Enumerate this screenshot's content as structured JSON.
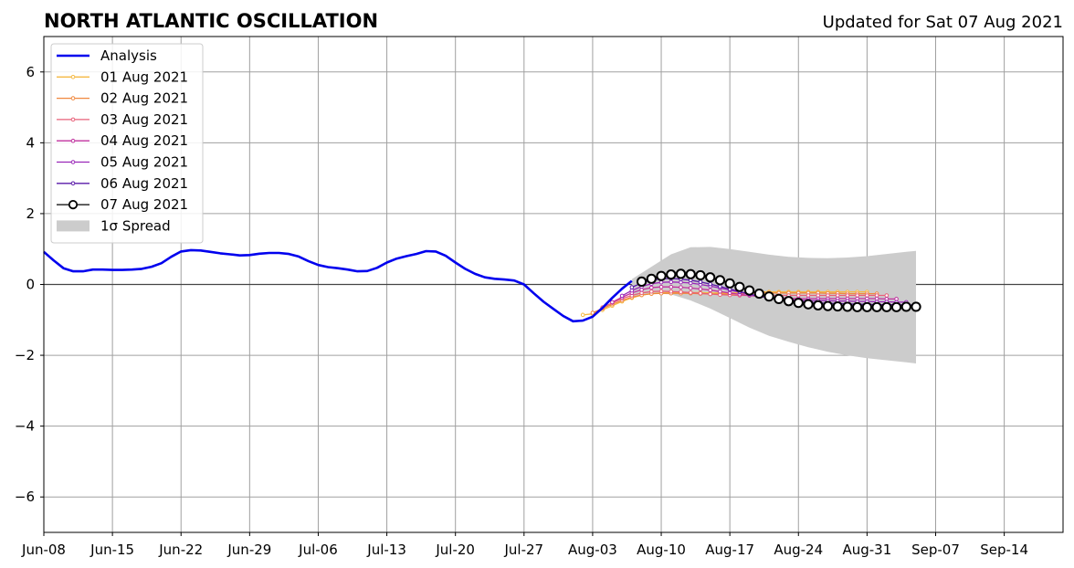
{
  "chart_data": {
    "type": "line",
    "title": "NORTH ATLANTIC OSCILLATION",
    "subtitle": "Updated for Sat 07 Aug 2021",
    "xlim": [
      "2021-06-08",
      "2021-09-20"
    ],
    "ylim": [
      -7,
      7
    ],
    "grid": true,
    "legend_position": "top-left",
    "x_ticks": [
      {
        "date": "2021-06-08",
        "label": "Jun-08"
      },
      {
        "date": "2021-06-15",
        "label": "Jun-15"
      },
      {
        "date": "2021-06-22",
        "label": "Jun-22"
      },
      {
        "date": "2021-06-29",
        "label": "Jun-29"
      },
      {
        "date": "2021-07-06",
        "label": "Jul-06"
      },
      {
        "date": "2021-07-13",
        "label": "Jul-13"
      },
      {
        "date": "2021-07-20",
        "label": "Jul-20"
      },
      {
        "date": "2021-07-27",
        "label": "Jul-27"
      },
      {
        "date": "2021-08-03",
        "label": "Aug-03"
      },
      {
        "date": "2021-08-10",
        "label": "Aug-10"
      },
      {
        "date": "2021-08-17",
        "label": "Aug-17"
      },
      {
        "date": "2021-08-24",
        "label": "Aug-24"
      },
      {
        "date": "2021-08-31",
        "label": "Aug-31"
      },
      {
        "date": "2021-09-07",
        "label": "Sep-07"
      },
      {
        "date": "2021-09-14",
        "label": "Sep-14"
      }
    ],
    "y_ticks": [
      {
        "value": 6,
        "label": "6"
      },
      {
        "value": 4,
        "label": "4"
      },
      {
        "value": 2,
        "label": "2"
      },
      {
        "value": 0,
        "label": "0"
      },
      {
        "value": -2,
        "label": "−2"
      },
      {
        "value": -4,
        "label": "−4"
      },
      {
        "value": -6,
        "label": "−6"
      }
    ],
    "analysis": {
      "name": "Analysis",
      "color": "#0000ee",
      "x": [
        "2021-06-08",
        "2021-06-09",
        "2021-06-10",
        "2021-06-11",
        "2021-06-12",
        "2021-06-13",
        "2021-06-14",
        "2021-06-15",
        "2021-06-16",
        "2021-06-17",
        "2021-06-18",
        "2021-06-19",
        "2021-06-20",
        "2021-06-21",
        "2021-06-22",
        "2021-06-23",
        "2021-06-24",
        "2021-06-25",
        "2021-06-26",
        "2021-06-27",
        "2021-06-28",
        "2021-06-29",
        "2021-06-30",
        "2021-07-01",
        "2021-07-02",
        "2021-07-03",
        "2021-07-04",
        "2021-07-05",
        "2021-07-06",
        "2021-07-07",
        "2021-07-08",
        "2021-07-09",
        "2021-07-10",
        "2021-07-11",
        "2021-07-12",
        "2021-07-13",
        "2021-07-14",
        "2021-07-15",
        "2021-07-16",
        "2021-07-17",
        "2021-07-18",
        "2021-07-19",
        "2021-07-20",
        "2021-07-21",
        "2021-07-22",
        "2021-07-23",
        "2021-07-24",
        "2021-07-25",
        "2021-07-26",
        "2021-07-27",
        "2021-07-28",
        "2021-07-29",
        "2021-07-30",
        "2021-07-31",
        "2021-08-01",
        "2021-08-02",
        "2021-08-03",
        "2021-08-04",
        "2021-08-05",
        "2021-08-06",
        "2021-08-07"
      ],
      "values": [
        0.92,
        0.68,
        0.46,
        0.37,
        0.37,
        0.42,
        0.42,
        0.41,
        0.41,
        0.42,
        0.44,
        0.5,
        0.6,
        0.78,
        0.93,
        0.97,
        0.96,
        0.92,
        0.88,
        0.85,
        0.82,
        0.83,
        0.87,
        0.89,
        0.89,
        0.86,
        0.79,
        0.66,
        0.55,
        0.49,
        0.46,
        0.42,
        0.37,
        0.38,
        0.47,
        0.62,
        0.73,
        0.8,
        0.86,
        0.94,
        0.93,
        0.81,
        0.62,
        0.44,
        0.3,
        0.2,
        0.16,
        0.14,
        0.11,
        0.0,
        -0.25,
        -0.49,
        -0.69,
        -0.89,
        -1.04,
        -1.02,
        -0.91,
        -0.66,
        -0.38,
        -0.12,
        0.1
      ]
    },
    "spread": {
      "name": "1σ Spread",
      "color": "#cccccc",
      "x": [
        "2021-08-07",
        "2021-08-09",
        "2021-08-11",
        "2021-08-13",
        "2021-08-15",
        "2021-08-17",
        "2021-08-19",
        "2021-08-21",
        "2021-08-23",
        "2021-08-25",
        "2021-08-27",
        "2021-08-29",
        "2021-08-31",
        "2021-09-02",
        "2021-09-04",
        "2021-09-05"
      ],
      "upper": [
        0.15,
        0.5,
        0.85,
        1.05,
        1.06,
        1.0,
        0.92,
        0.84,
        0.78,
        0.75,
        0.74,
        0.76,
        0.8,
        0.86,
        0.92,
        0.95
      ],
      "lower": [
        -0.35,
        -0.25,
        -0.28,
        -0.45,
        -0.68,
        -0.95,
        -1.22,
        -1.45,
        -1.62,
        -1.77,
        -1.9,
        -2.0,
        -2.08,
        -2.14,
        -2.2,
        -2.23
      ]
    },
    "series": [
      {
        "name": "01 Aug 2021",
        "color": "#f5b942",
        "start": "2021-08-02",
        "values": [
          -0.86,
          -0.83,
          -0.72,
          -0.6,
          -0.48,
          -0.38,
          -0.3,
          -0.26,
          -0.24,
          -0.23,
          -0.23,
          -0.23,
          -0.23,
          -0.24,
          -0.24,
          -0.24,
          -0.23,
          -0.22,
          -0.21,
          -0.21,
          -0.21,
          -0.21,
          -0.21,
          -0.21,
          -0.21,
          -0.21,
          -0.21,
          -0.21,
          -0.21,
          -0.21
        ]
      },
      {
        "name": "02 Aug 2021",
        "color": "#f0883e",
        "start": "2021-08-03",
        "values": [
          -0.8,
          -0.68,
          -0.56,
          -0.45,
          -0.36,
          -0.3,
          -0.26,
          -0.25,
          -0.25,
          -0.25,
          -0.25,
          -0.26,
          -0.27,
          -0.27,
          -0.27,
          -0.26,
          -0.25,
          -0.24,
          -0.24,
          -0.24,
          -0.24,
          -0.24,
          -0.24,
          -0.24,
          -0.25,
          -0.25,
          -0.26,
          -0.26,
          -0.26,
          -0.26
        ]
      },
      {
        "name": "03 Aug 2021",
        "color": "#e8607a",
        "start": "2021-08-04",
        "values": [
          -0.65,
          -0.52,
          -0.4,
          -0.31,
          -0.24,
          -0.2,
          -0.19,
          -0.2,
          -0.21,
          -0.23,
          -0.25,
          -0.27,
          -0.29,
          -0.3,
          -0.31,
          -0.31,
          -0.31,
          -0.31,
          -0.31,
          -0.31,
          -0.31,
          -0.31,
          -0.31,
          -0.31,
          -0.31,
          -0.31,
          -0.31,
          -0.31,
          -0.31,
          -0.31
        ]
      },
      {
        "name": "04 Aug 2021",
        "color": "#c0309e",
        "start": "2021-08-05",
        "values": [
          -0.5,
          -0.36,
          -0.24,
          -0.15,
          -0.09,
          -0.07,
          -0.07,
          -0.08,
          -0.1,
          -0.13,
          -0.16,
          -0.2,
          -0.24,
          -0.28,
          -0.31,
          -0.34,
          -0.36,
          -0.38,
          -0.39,
          -0.4,
          -0.4,
          -0.4,
          -0.4,
          -0.4,
          -0.4,
          -0.4,
          -0.4,
          -0.4,
          -0.41,
          -0.41
        ]
      },
      {
        "name": "05 Aug 2021",
        "color": "#9a28b8",
        "start": "2021-08-06",
        "values": [
          -0.32,
          -0.17,
          -0.06,
          0.02,
          0.06,
          0.07,
          0.06,
          0.04,
          0.0,
          -0.05,
          -0.1,
          -0.16,
          -0.22,
          -0.28,
          -0.33,
          -0.37,
          -0.4,
          -0.43,
          -0.44,
          -0.45,
          -0.46,
          -0.46,
          -0.47,
          -0.47,
          -0.48,
          -0.48,
          -0.49,
          -0.49,
          -0.5,
          -0.5
        ]
      },
      {
        "name": "06 Aug 2021",
        "color": "#5a1aa8",
        "start": "2021-08-07",
        "values": [
          -0.08,
          0.04,
          0.12,
          0.16,
          0.17,
          0.15,
          0.12,
          0.07,
          0.01,
          -0.06,
          -0.13,
          -0.2,
          -0.27,
          -0.33,
          -0.38,
          -0.42,
          -0.45,
          -0.48,
          -0.5,
          -0.52,
          -0.53,
          -0.54,
          -0.55,
          -0.56,
          -0.56,
          -0.57,
          -0.57,
          -0.57,
          -0.58,
          -0.58
        ]
      },
      {
        "name": "07 Aug 2021",
        "color": "#000000",
        "start": "2021-08-08",
        "open_markers": true,
        "values": [
          0.08,
          0.16,
          0.24,
          0.28,
          0.3,
          0.29,
          0.26,
          0.2,
          0.12,
          0.03,
          -0.07,
          -0.17,
          -0.26,
          -0.34,
          -0.41,
          -0.47,
          -0.52,
          -0.56,
          -0.59,
          -0.61,
          -0.62,
          -0.63,
          -0.64,
          -0.64,
          -0.64,
          -0.64,
          -0.64,
          -0.63,
          -0.63
        ]
      }
    ]
  }
}
